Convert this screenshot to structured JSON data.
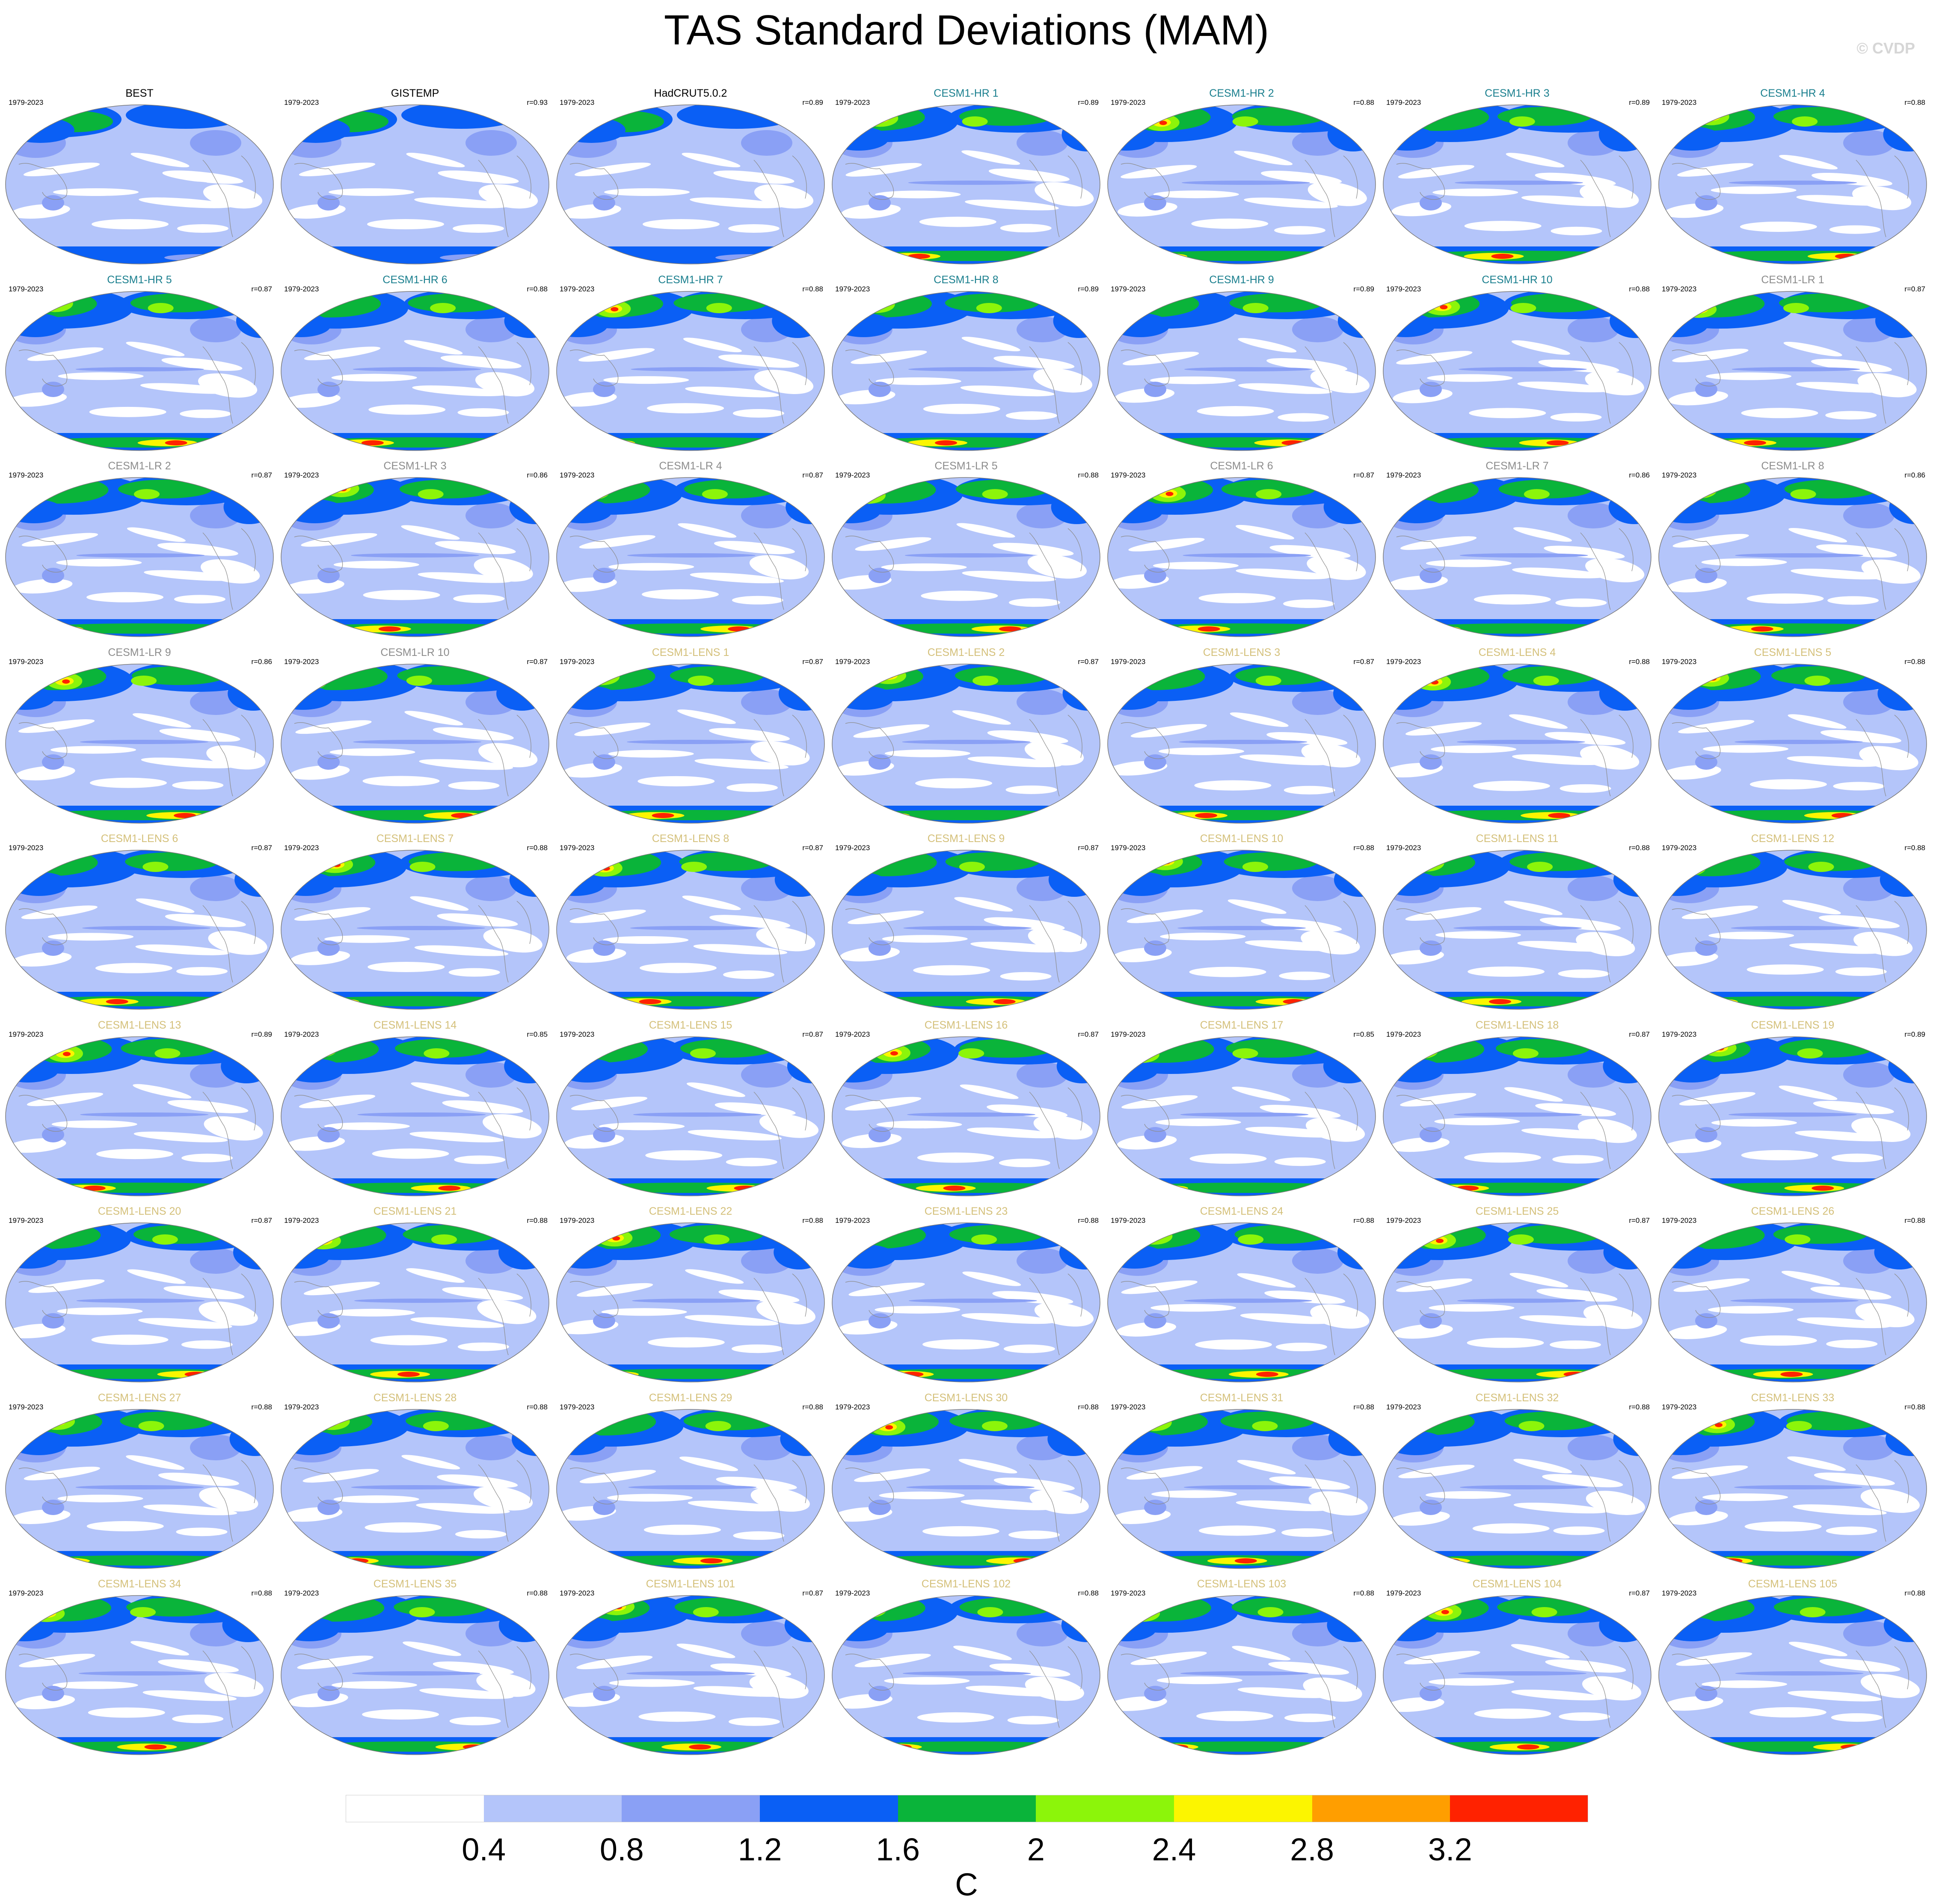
{
  "title": "TAS Standard Deviations (MAM)",
  "copyright": "© CVDP",
  "chart_data": {
    "type": "heatmap",
    "title": "TAS Standard Deviations (MAM)",
    "projection": "Robinson-like global map, Pacific-centered",
    "layout": {
      "rows": 9,
      "columns": 7
    },
    "panels": [
      {
        "name": "BEST",
        "period": "1979-2023",
        "r": "",
        "group": "obs"
      },
      {
        "name": "GISTEMP",
        "period": "1979-2023",
        "r": "r=0.93",
        "group": "obs"
      },
      {
        "name": "HadCRUT5.0.2",
        "period": "1979-2023",
        "r": "r=0.89",
        "group": "obs"
      },
      {
        "name": "CESM1-HR 1",
        "period": "1979-2023",
        "r": "r=0.89",
        "group": "hr"
      },
      {
        "name": "CESM1-HR 2",
        "period": "1979-2023",
        "r": "r=0.88",
        "group": "hr"
      },
      {
        "name": "CESM1-HR 3",
        "period": "1979-2023",
        "r": "r=0.89",
        "group": "hr"
      },
      {
        "name": "CESM1-HR 4",
        "period": "1979-2023",
        "r": "r=0.88",
        "group": "hr"
      },
      {
        "name": "CESM1-HR 5",
        "period": "1979-2023",
        "r": "r=0.87",
        "group": "hr"
      },
      {
        "name": "CESM1-HR 6",
        "period": "1979-2023",
        "r": "r=0.88",
        "group": "hr"
      },
      {
        "name": "CESM1-HR 7",
        "period": "1979-2023",
        "r": "r=0.88",
        "group": "hr"
      },
      {
        "name": "CESM1-HR 8",
        "period": "1979-2023",
        "r": "r=0.89",
        "group": "hr"
      },
      {
        "name": "CESM1-HR 9",
        "period": "1979-2023",
        "r": "r=0.89",
        "group": "hr"
      },
      {
        "name": "CESM1-HR 10",
        "period": "1979-2023",
        "r": "r=0.88",
        "group": "hr"
      },
      {
        "name": "CESM1-LR 1",
        "period": "1979-2023",
        "r": "r=0.87",
        "group": "lr"
      },
      {
        "name": "CESM1-LR 2",
        "period": "1979-2023",
        "r": "r=0.87",
        "group": "lr"
      },
      {
        "name": "CESM1-LR 3",
        "period": "1979-2023",
        "r": "r=0.86",
        "group": "lr"
      },
      {
        "name": "CESM1-LR 4",
        "period": "1979-2023",
        "r": "r=0.87",
        "group": "lr"
      },
      {
        "name": "CESM1-LR 5",
        "period": "1979-2023",
        "r": "r=0.88",
        "group": "lr"
      },
      {
        "name": "CESM1-LR 6",
        "period": "1979-2023",
        "r": "r=0.87",
        "group": "lr"
      },
      {
        "name": "CESM1-LR 7",
        "period": "1979-2023",
        "r": "r=0.86",
        "group": "lr"
      },
      {
        "name": "CESM1-LR 8",
        "period": "1979-2023",
        "r": "r=0.86",
        "group": "lr"
      },
      {
        "name": "CESM1-LR 9",
        "period": "1979-2023",
        "r": "r=0.86",
        "group": "lr"
      },
      {
        "name": "CESM1-LR 10",
        "period": "1979-2023",
        "r": "r=0.87",
        "group": "lr"
      },
      {
        "name": "CESM1-LENS 1",
        "period": "1979-2023",
        "r": "r=0.87",
        "group": "lens"
      },
      {
        "name": "CESM1-LENS 2",
        "period": "1979-2023",
        "r": "r=0.87",
        "group": "lens"
      },
      {
        "name": "CESM1-LENS 3",
        "period": "1979-2023",
        "r": "r=0.87",
        "group": "lens"
      },
      {
        "name": "CESM1-LENS 4",
        "period": "1979-2023",
        "r": "r=0.88",
        "group": "lens"
      },
      {
        "name": "CESM1-LENS 5",
        "period": "1979-2023",
        "r": "r=0.88",
        "group": "lens"
      },
      {
        "name": "CESM1-LENS 6",
        "period": "1979-2023",
        "r": "r=0.87",
        "group": "lens"
      },
      {
        "name": "CESM1-LENS 7",
        "period": "1979-2023",
        "r": "r=0.88",
        "group": "lens"
      },
      {
        "name": "CESM1-LENS 8",
        "period": "1979-2023",
        "r": "r=0.87",
        "group": "lens"
      },
      {
        "name": "CESM1-LENS 9",
        "period": "1979-2023",
        "r": "r=0.87",
        "group": "lens"
      },
      {
        "name": "CESM1-LENS 10",
        "period": "1979-2023",
        "r": "r=0.88",
        "group": "lens"
      },
      {
        "name": "CESM1-LENS 11",
        "period": "1979-2023",
        "r": "r=0.88",
        "group": "lens"
      },
      {
        "name": "CESM1-LENS 12",
        "period": "1979-2023",
        "r": "r=0.88",
        "group": "lens"
      },
      {
        "name": "CESM1-LENS 13",
        "period": "1979-2023",
        "r": "r=0.89",
        "group": "lens"
      },
      {
        "name": "CESM1-LENS 14",
        "period": "1979-2023",
        "r": "r=0.85",
        "group": "lens"
      },
      {
        "name": "CESM1-LENS 15",
        "period": "1979-2023",
        "r": "r=0.87",
        "group": "lens"
      },
      {
        "name": "CESM1-LENS 16",
        "period": "1979-2023",
        "r": "r=0.87",
        "group": "lens"
      },
      {
        "name": "CESM1-LENS 17",
        "period": "1979-2023",
        "r": "r=0.85",
        "group": "lens"
      },
      {
        "name": "CESM1-LENS 18",
        "period": "1979-2023",
        "r": "r=0.87",
        "group": "lens"
      },
      {
        "name": "CESM1-LENS 19",
        "period": "1979-2023",
        "r": "r=0.89",
        "group": "lens"
      },
      {
        "name": "CESM1-LENS 20",
        "period": "1979-2023",
        "r": "r=0.87",
        "group": "lens"
      },
      {
        "name": "CESM1-LENS 21",
        "period": "1979-2023",
        "r": "r=0.88",
        "group": "lens"
      },
      {
        "name": "CESM1-LENS 22",
        "period": "1979-2023",
        "r": "r=0.88",
        "group": "lens"
      },
      {
        "name": "CESM1-LENS 23",
        "period": "1979-2023",
        "r": "r=0.88",
        "group": "lens"
      },
      {
        "name": "CESM1-LENS 24",
        "period": "1979-2023",
        "r": "r=0.88",
        "group": "lens"
      },
      {
        "name": "CESM1-LENS 25",
        "period": "1979-2023",
        "r": "r=0.87",
        "group": "lens"
      },
      {
        "name": "CESM1-LENS 26",
        "period": "1979-2023",
        "r": "r=0.88",
        "group": "lens"
      },
      {
        "name": "CESM1-LENS 27",
        "period": "1979-2023",
        "r": "r=0.88",
        "group": "lens"
      },
      {
        "name": "CESM1-LENS 28",
        "period": "1979-2023",
        "r": "r=0.88",
        "group": "lens"
      },
      {
        "name": "CESM1-LENS 29",
        "period": "1979-2023",
        "r": "r=0.88",
        "group": "lens"
      },
      {
        "name": "CESM1-LENS 30",
        "period": "1979-2023",
        "r": "r=0.88",
        "group": "lens"
      },
      {
        "name": "CESM1-LENS 31",
        "period": "1979-2023",
        "r": "r=0.88",
        "group": "lens"
      },
      {
        "name": "CESM1-LENS 32",
        "period": "1979-2023",
        "r": "r=0.88",
        "group": "lens"
      },
      {
        "name": "CESM1-LENS 33",
        "period": "1979-2023",
        "r": "r=0.88",
        "group": "lens"
      },
      {
        "name": "CESM1-LENS 34",
        "period": "1979-2023",
        "r": "r=0.88",
        "group": "lens"
      },
      {
        "name": "CESM1-LENS 35",
        "period": "1979-2023",
        "r": "r=0.88",
        "group": "lens"
      },
      {
        "name": "CESM1-LENS 101",
        "period": "1979-2023",
        "r": "r=0.87",
        "group": "lens"
      },
      {
        "name": "CESM1-LENS 102",
        "period": "1979-2023",
        "r": "r=0.88",
        "group": "lens"
      },
      {
        "name": "CESM1-LENS 103",
        "period": "1979-2023",
        "r": "r=0.88",
        "group": "lens"
      },
      {
        "name": "CESM1-LENS 104",
        "period": "1979-2023",
        "r": "r=0.87",
        "group": "lens"
      },
      {
        "name": "CESM1-LENS 105",
        "period": "1979-2023",
        "r": "r=0.88",
        "group": "lens"
      }
    ],
    "group_title_colors": {
      "obs": "#000000",
      "hr": "#1a7f8e",
      "lr": "#8c8c8c",
      "lens": "#d4c07a"
    },
    "colorbar": {
      "levels": [
        0.4,
        0.8,
        1.2,
        1.6,
        2,
        2.4,
        2.8,
        3.2
      ],
      "tick_labels": [
        "0.4",
        "0.8",
        "1.2",
        "1.6",
        "2",
        "2.4",
        "2.8",
        "3.2"
      ],
      "colors": [
        "#ffffff",
        "#b4c5fa",
        "#8aa0f5",
        "#0a5ff5",
        "#0ab43a",
        "#8cf50a",
        "#fcf500",
        "#ff9e00",
        "#ff2200"
      ],
      "units": "C"
    }
  }
}
